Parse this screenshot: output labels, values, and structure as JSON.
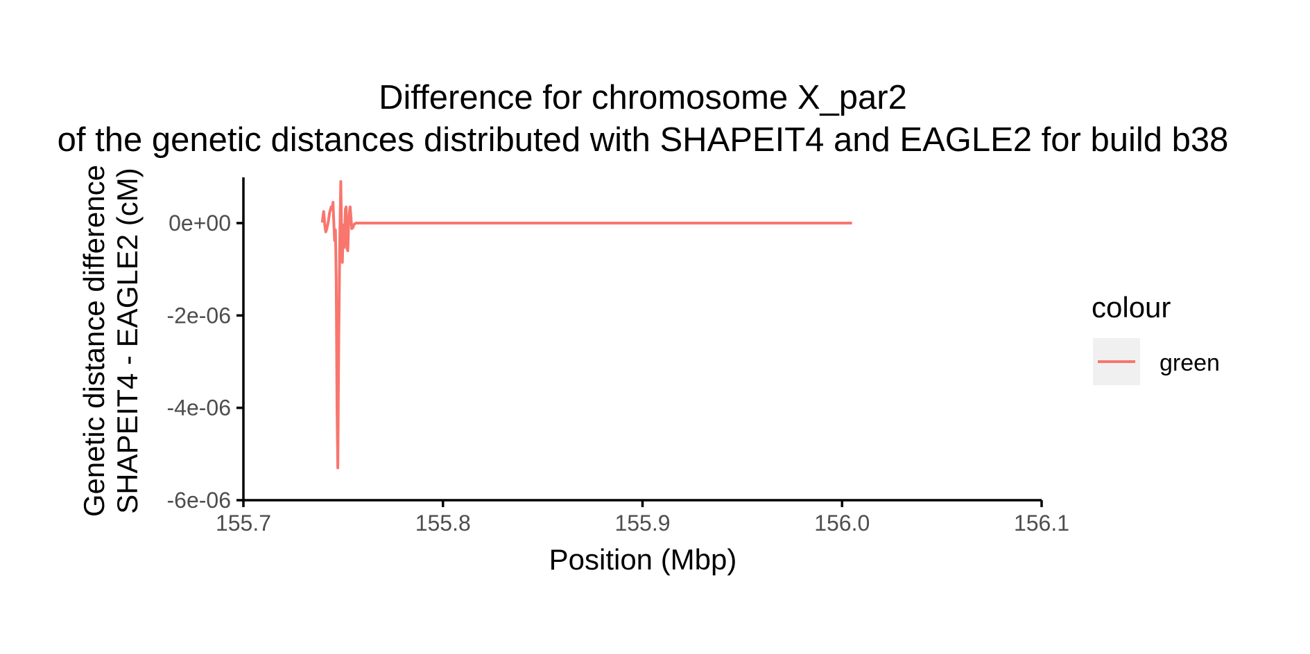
{
  "chart_data": {
    "type": "line",
    "title_line1": "Difference for chromosome X_par2",
    "title_line2": "of the genetic distances distributed with SHAPEIT4 and EAGLE2 for build b38",
    "xlabel": "Position (Mbp)",
    "ylabel_line1": "Genetic distance difference",
    "ylabel_line2": "SHAPEIT4 - EAGLE2 (cM)",
    "xlim": [
      155.7,
      156.1
    ],
    "ylim": [
      -6e-06,
      1e-06
    ],
    "x_ticks": [
      155.7,
      155.8,
      155.9,
      156.0,
      156.1
    ],
    "x_tick_labels": [
      "155.7",
      "155.8",
      "155.9",
      "156.0",
      "156.1"
    ],
    "y_ticks": [
      0,
      -2e-06,
      -4e-06,
      -6e-06
    ],
    "y_tick_labels": [
      "0e+00",
      "-2e-06",
      "-4e-06",
      "-6e-06"
    ],
    "grid": false,
    "legend": {
      "title": "colour",
      "position": "right",
      "entries": [
        {
          "label": "green",
          "color": "#F8766D"
        }
      ]
    },
    "series": [
      {
        "color": "#F8766D",
        "x": [
          155.7395,
          155.7402,
          155.7408,
          155.7413,
          155.7418,
          155.7425,
          155.7432,
          155.744,
          155.7445,
          155.7449,
          155.7453,
          155.7457,
          155.7461,
          155.7465,
          155.7469,
          155.7473,
          155.7478,
          155.7483,
          155.7488,
          155.7492,
          155.7496,
          155.75,
          155.7504,
          155.7507,
          155.7511,
          155.7515,
          155.7519,
          155.7523,
          155.7527,
          155.7531,
          155.7535,
          155.7539,
          155.7543,
          155.7548,
          155.7552,
          155.7556,
          155.756,
          155.7564,
          155.7568,
          155.7572,
          155.7576,
          155.758,
          155.7584,
          155.7588,
          155.7592,
          155.7596,
          155.76,
          155.7604,
          155.7608,
          155.7612,
          155.7616,
          155.762,
          155.7624,
          155.7628,
          155.7632,
          155.764,
          155.766,
          155.8,
          155.9,
          156.0,
          156.005
        ],
        "y": [
          1e-08,
          2.5e-07,
          -5e-08,
          -1.9e-07,
          -1.2e-07,
          2e-08,
          2.3e-07,
          3.5e-07,
          3e-07,
          4.5e-07,
          -1e-08,
          -3.8e-07,
          -1.5e-07,
          -1.2e-06,
          -4e-06,
          -5.3e-06,
          -2.5e-06,
          -3.5e-07,
          9e-07,
          -2e-07,
          -8.5e-07,
          -4e-08,
          -5.3e-07,
          -3e-07,
          3e-07,
          3.5e-07,
          -5.5e-07,
          -6e-07,
          -8e-08,
          2.2e-07,
          3.5e-07,
          1.2e-07,
          -1.2e-07,
          -1e-07,
          -6e-08,
          -2e-08,
          -1e-08,
          0,
          0,
          0,
          0,
          0,
          0,
          0,
          0,
          0,
          0,
          0,
          0,
          0,
          0,
          0,
          0,
          0,
          0,
          0,
          0,
          0,
          0,
          0,
          0
        ]
      }
    ]
  }
}
